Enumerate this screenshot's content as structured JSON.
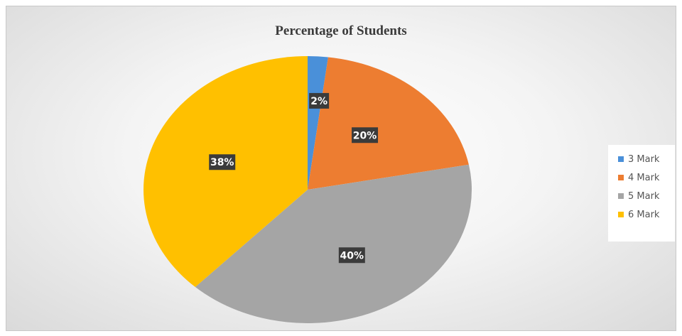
{
  "chart_data": {
    "type": "pie",
    "title": "Percentage of Students",
    "categories": [
      "3 Mark",
      "4 Mark",
      "5 Mark",
      "6 Mark"
    ],
    "values": [
      2,
      20,
      40,
      38
    ],
    "data_labels": [
      "2%",
      "20%",
      "40%",
      "38%"
    ],
    "colors": [
      "#4a90d9",
      "#ed7d31",
      "#a5a5a5",
      "#ffc000"
    ],
    "legend_placement": "right",
    "start_angle": "12 o'clock, clockwise"
  }
}
